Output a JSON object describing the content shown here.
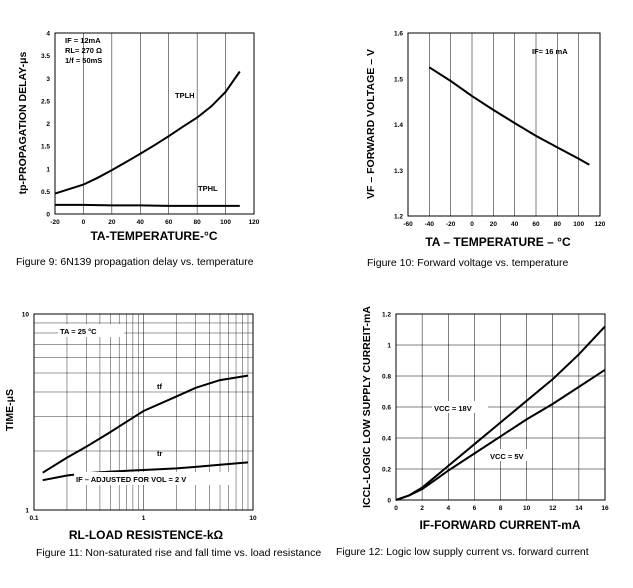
{
  "chart_data": [
    {
      "type": "line",
      "xlabel": "TA-TEMPERATURE-°C",
      "ylabel": "tp-PROPAGATION DELAY-μs",
      "xlim": [
        -20,
        120
      ],
      "ylim": [
        0,
        4
      ],
      "xticks": [
        "-20",
        "0",
        "20",
        "40",
        "60",
        "80",
        "100",
        "120"
      ],
      "yticks": [
        "0",
        "0.5",
        "1",
        "1.5",
        "2",
        "2.5",
        "3",
        "3.5",
        "4"
      ],
      "grid": "vertical",
      "annotations": [
        "IF = 12mA",
        "RL= 270 Ω",
        "1/f = 50mS"
      ],
      "series": [
        {
          "name": "TPLH",
          "x": [
            -20,
            -10,
            0,
            10,
            20,
            30,
            40,
            50,
            60,
            70,
            80,
            90,
            100,
            110
          ],
          "y": [
            0.45,
            0.55,
            0.65,
            0.8,
            0.97,
            1.15,
            1.33,
            1.52,
            1.72,
            1.93,
            2.13,
            2.38,
            2.7,
            3.15
          ]
        },
        {
          "name": "TPHL",
          "x": [
            -20,
            0,
            20,
            40,
            60,
            80,
            100,
            110
          ],
          "y": [
            0.2,
            0.2,
            0.19,
            0.19,
            0.18,
            0.18,
            0.18,
            0.18
          ]
        }
      ],
      "caption": "Figure 9: 6N139 propagation delay vs. temperature"
    },
    {
      "type": "line",
      "xlabel": "TA – TEMPERATURE – °C",
      "ylabel": "VF – FORWARD VOLTAGE – V",
      "xlim": [
        -60,
        120
      ],
      "ylim": [
        1.2,
        1.6
      ],
      "xticks": [
        "-60",
        "-40",
        "-20",
        "0",
        "20",
        "40",
        "60",
        "80",
        "100",
        "120"
      ],
      "yticks": [
        "1.2",
        "1.3",
        "1.4",
        "1.5",
        "1.6"
      ],
      "grid": "vertical",
      "annotations": [
        "IF= 16 mA"
      ],
      "series": [
        {
          "name": "",
          "x": [
            -40,
            -20,
            0,
            20,
            40,
            60,
            80,
            100,
            110
          ],
          "y": [
            1.525,
            1.495,
            1.462,
            1.432,
            1.403,
            1.375,
            1.35,
            1.325,
            1.312
          ]
        }
      ],
      "caption": "Figure 10: Forward voltage vs. temperature"
    },
    {
      "type": "line",
      "xlabel": "RL-LOAD RESISTENCE-kΩ",
      "ylabel": "TIME-μS",
      "xscale": "log",
      "yscale": "log",
      "xlim": [
        0.1,
        10
      ],
      "ylim": [
        1,
        10
      ],
      "xticks": [
        "0.1",
        "1",
        "10"
      ],
      "yticks": [
        "1",
        "10"
      ],
      "grid": "both",
      "annotations": [
        "TA = 25 °C",
        "IF – ADJUSTED FOR VOL = 2 V"
      ],
      "series": [
        {
          "name": "tf",
          "x": [
            0.12,
            0.2,
            0.3,
            0.5,
            1,
            2,
            3,
            5,
            9
          ],
          "y": [
            1.55,
            1.85,
            2.1,
            2.5,
            3.2,
            3.8,
            4.2,
            4.6,
            4.85
          ]
        },
        {
          "name": "tr",
          "x": [
            0.12,
            0.2,
            0.3,
            0.5,
            1,
            2,
            3,
            5,
            9
          ],
          "y": [
            1.42,
            1.5,
            1.54,
            1.57,
            1.6,
            1.63,
            1.66,
            1.7,
            1.75
          ]
        }
      ],
      "caption": "Figure 11: Non-saturated rise and fall time vs. load resistance"
    },
    {
      "type": "line",
      "xlabel": "IF-FORWARD CURRENT-mA",
      "ylabel": "ICCL-LOGIC LOW SUPPLY CURREIT-mA",
      "xlim": [
        0,
        16
      ],
      "ylim": [
        0,
        1.2
      ],
      "xticks": [
        "0",
        "2",
        "4",
        "6",
        "8",
        "10",
        "12",
        "14",
        "16"
      ],
      "yticks": [
        "0",
        "0.2",
        "0.4",
        "0.6",
        "0.8",
        "1",
        "1.2"
      ],
      "grid": "both",
      "series": [
        {
          "name": "VCC = 18V",
          "x": [
            0,
            1,
            2,
            3,
            4,
            6,
            8,
            10,
            12,
            14,
            16
          ],
          "y": [
            0,
            0.03,
            0.08,
            0.15,
            0.22,
            0.36,
            0.5,
            0.64,
            0.78,
            0.94,
            1.12
          ]
        },
        {
          "name": "VCC = 5V",
          "x": [
            0,
            1,
            2,
            3,
            4,
            6,
            8,
            10,
            12,
            14,
            16
          ],
          "y": [
            0,
            0.03,
            0.07,
            0.13,
            0.19,
            0.3,
            0.41,
            0.52,
            0.62,
            0.73,
            0.84
          ]
        }
      ],
      "caption": "Figure 12: Logic low supply current vs. forward current"
    }
  ]
}
